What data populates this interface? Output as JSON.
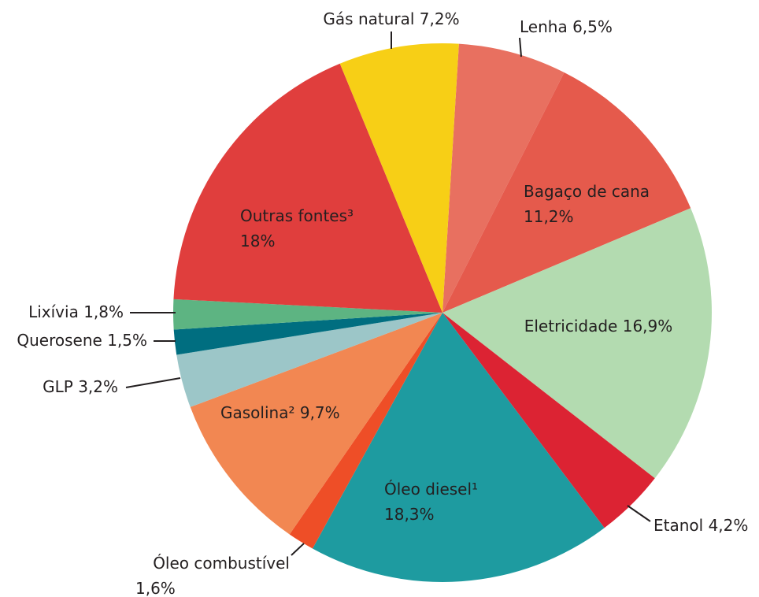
{
  "chart_data": {
    "type": "pie",
    "categories": [
      "Lenha",
      "Bagaço de cana",
      "Eletricidade",
      "Etanol",
      "Óleo diesel¹",
      "Óleo combustível",
      "Gasolina² ",
      "GLP",
      "Querosene",
      "Lixívia",
      "Outras fontes³",
      "Gás natural"
    ],
    "values": [
      6.5,
      11.2,
      16.9,
      4.2,
      18.3,
      1.6,
      9.7,
      3.2,
      1.5,
      1.8,
      18,
      7.2
    ],
    "value_labels": [
      "6,5%",
      "11,2%",
      "16,9%",
      "4,2%",
      "18,3%",
      "1,6%",
      "9,7%",
      "3,2%",
      "1,5%",
      "1,8%",
      "18%",
      "7,2%"
    ],
    "colors": [
      "#e87060",
      "#e55a4c",
      "#b3dbb0",
      "#dc2333",
      "#1e9ba0",
      "#ee4e27",
      "#f28752",
      "#9cc6c8",
      "#006e80",
      "#5db482",
      "#e03e3d",
      "#f7cf16"
    ]
  }
}
